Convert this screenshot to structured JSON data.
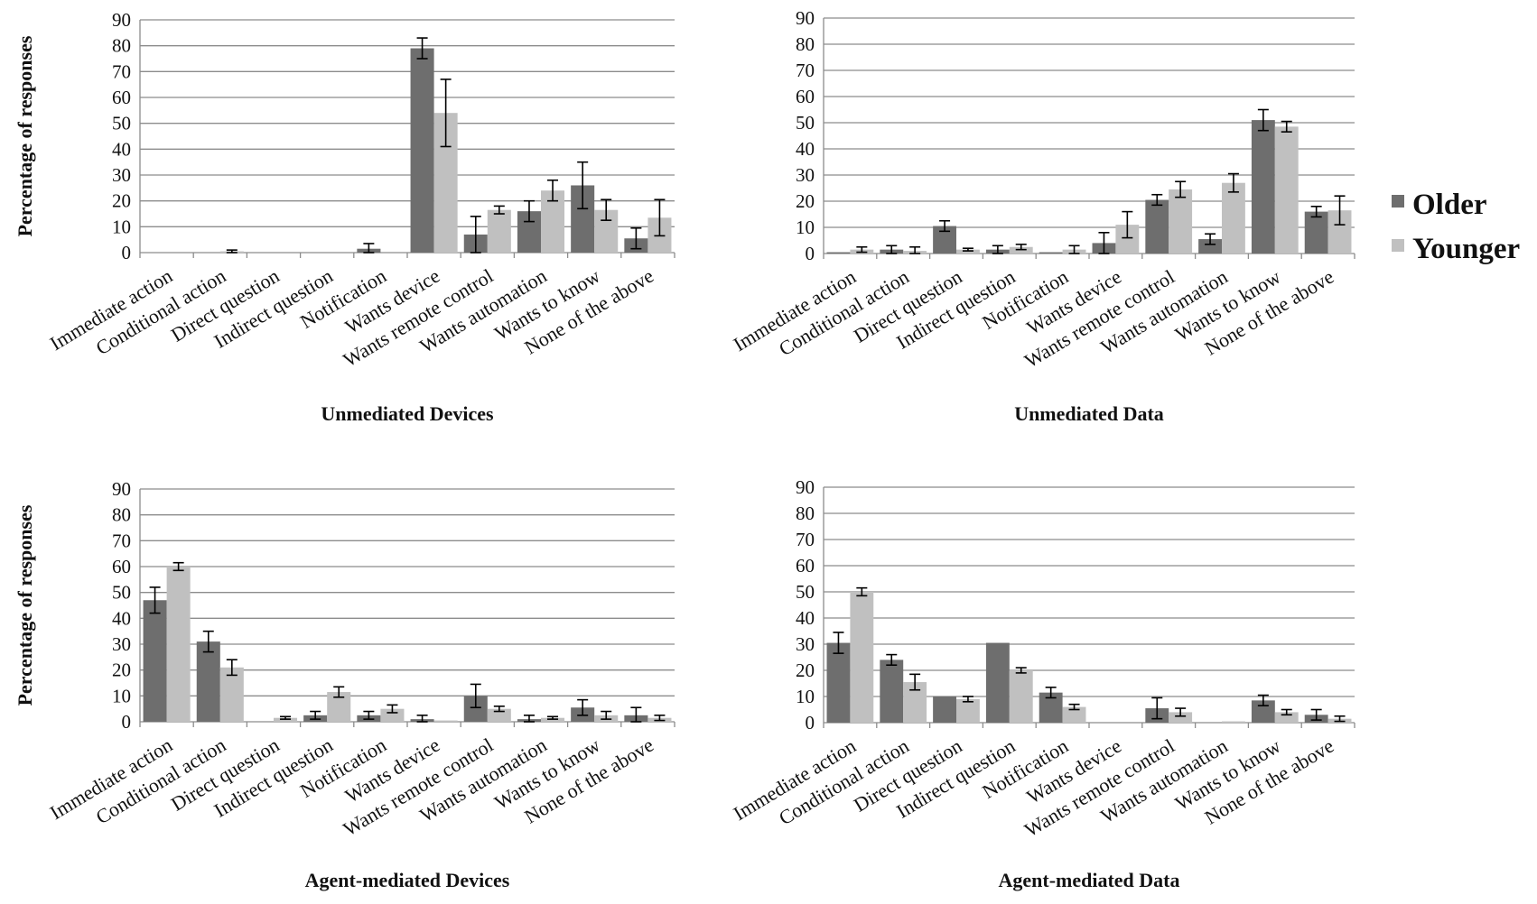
{
  "legend": [
    {
      "name": "Older",
      "color": "#6e6e6e"
    },
    {
      "name": "Younger",
      "color": "#c0c0c0"
    }
  ],
  "chart_data": [
    {
      "type": "bar",
      "title": "Unmediated Devices",
      "xlabel": "",
      "ylabel": "Percentage of responses",
      "ylim": [
        0,
        90
      ],
      "yticks": [
        0,
        10,
        20,
        30,
        40,
        50,
        60,
        70,
        80,
        90
      ],
      "grid": true,
      "categories": [
        "Immediate action",
        "Conditional action",
        "Direct question",
        "Indirect  question",
        "Notification",
        "Wants device",
        "Wants remote control",
        "Wants automation",
        "Wants to know",
        "None of the above"
      ],
      "series": [
        {
          "name": "Older",
          "values": [
            0,
            0,
            0,
            0,
            1.5,
            79,
            7,
            16,
            26,
            5.5
          ],
          "errors": [
            0,
            0,
            0,
            0,
            2,
            4,
            7,
            4,
            9,
            4
          ]
        },
        {
          "name": "Younger",
          "values": [
            0,
            0.5,
            0,
            0,
            0,
            54,
            16.5,
            24,
            16.5,
            13.5
          ],
          "errors": [
            0,
            0.5,
            0,
            0,
            0,
            13,
            1.5,
            4,
            4,
            7
          ]
        }
      ]
    },
    {
      "type": "bar",
      "title": "Unmediated Data",
      "xlabel": "",
      "ylabel": "",
      "ylim": [
        0,
        90
      ],
      "yticks": [
        0,
        10,
        20,
        30,
        40,
        50,
        60,
        70,
        80,
        90
      ],
      "grid": true,
      "categories": [
        "Immediate action",
        "Conditional action",
        "Direct question",
        "Indirect  question",
        "Notification",
        "Wants device",
        "Wants remote control",
        "Wants automation",
        "Wants to know",
        "None of the above"
      ],
      "series": [
        {
          "name": "Older",
          "values": [
            0.5,
            1.5,
            10.5,
            1.5,
            0.5,
            4,
            20.5,
            5.5,
            51,
            16
          ],
          "errors": [
            0,
            1.5,
            2,
            1.5,
            0,
            4,
            2,
            2,
            4,
            2
          ]
        },
        {
          "name": "Younger",
          "values": [
            1.5,
            1,
            1.5,
            2.5,
            1.5,
            11,
            24.5,
            27,
            48.5,
            16.5
          ],
          "errors": [
            1,
            1.5,
            0.5,
            1,
            1.5,
            5,
            3,
            3.5,
            2,
            5.5
          ]
        }
      ]
    },
    {
      "type": "bar",
      "title": "Agent-mediated Devices",
      "xlabel": "",
      "ylabel": "Percentage of responses",
      "ylim": [
        0,
        90
      ],
      "yticks": [
        0,
        10,
        20,
        30,
        40,
        50,
        60,
        70,
        80,
        90
      ],
      "grid": true,
      "categories": [
        "Immediate action",
        "Conditional action",
        "Direct question",
        "Indirect  question",
        "Notification",
        "Wants device",
        "Wants remote control",
        "Wants automation",
        "Wants to know",
        "None of the above"
      ],
      "series": [
        {
          "name": "Older",
          "values": [
            47,
            31,
            0,
            2.5,
            2.5,
            1,
            10,
            1,
            5.5,
            2.5
          ],
          "errors": [
            5,
            4,
            0,
            1.5,
            1.5,
            1.5,
            4.5,
            1.5,
            3,
            3
          ]
        },
        {
          "name": "Younger",
          "values": [
            60,
            21,
            1.5,
            11.5,
            5,
            0.5,
            5,
            1.5,
            2.5,
            1.5
          ],
          "errors": [
            1.5,
            3,
            0.5,
            2,
            1.5,
            0,
            1,
            0.5,
            1.5,
            1
          ]
        }
      ]
    },
    {
      "type": "bar",
      "title": "Agent-mediated Data",
      "xlabel": "",
      "ylabel": "",
      "ylim": [
        0,
        90
      ],
      "yticks": [
        0,
        10,
        20,
        30,
        40,
        50,
        60,
        70,
        80,
        90
      ],
      "grid": true,
      "categories": [
        "Immediate action",
        "Conditional action",
        "Direct question",
        "Indirect  question",
        "Notification",
        "Wants device",
        "Wants remote control",
        "Wants automation",
        "Wants to know",
        "None of the above"
      ],
      "series": [
        {
          "name": "Older",
          "values": [
            30.5,
            24,
            10,
            30.5,
            11.5,
            0,
            5.5,
            0,
            8.5,
            3
          ],
          "errors": [
            4,
            2,
            0,
            0,
            2,
            0,
            4,
            0,
            2,
            2
          ]
        },
        {
          "name": "Younger",
          "values": [
            50,
            15.5,
            9,
            20,
            6,
            0,
            4,
            0.5,
            4,
            1.5
          ],
          "errors": [
            1.5,
            3,
            1,
            1,
            1,
            0,
            1.5,
            0,
            1,
            1
          ]
        }
      ]
    }
  ]
}
